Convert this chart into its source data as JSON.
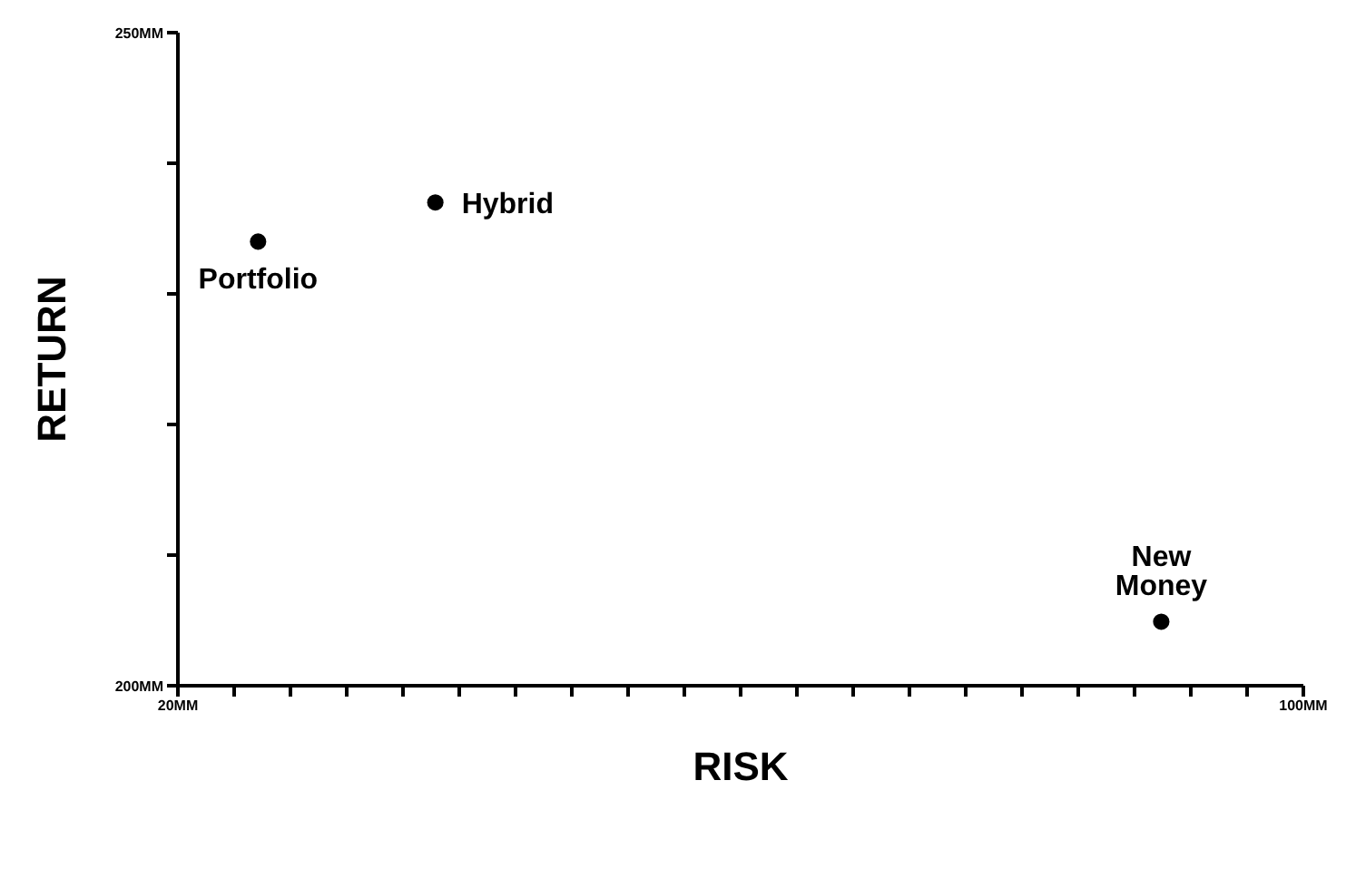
{
  "chart_data": {
    "type": "scatter",
    "xlabel": "RISK",
    "ylabel": "RETURN",
    "xlim": [
      20,
      100
    ],
    "xticks": [
      {
        "value": 20,
        "label": "20MM"
      },
      {
        "value": 24,
        "label": null
      },
      {
        "value": 28,
        "label": null
      },
      {
        "value": 32,
        "label": null
      },
      {
        "value": 36,
        "label": null
      },
      {
        "value": 40,
        "label": null
      },
      {
        "value": 44,
        "label": null
      },
      {
        "value": 48,
        "label": null
      },
      {
        "value": 52,
        "label": null
      },
      {
        "value": 56,
        "label": null
      },
      {
        "value": 60,
        "label": null
      },
      {
        "value": 64,
        "label": null
      },
      {
        "value": 68,
        "label": null
      },
      {
        "value": 72,
        "label": null
      },
      {
        "value": 76,
        "label": null
      },
      {
        "value": 80,
        "label": null
      },
      {
        "value": 84,
        "label": null
      },
      {
        "value": 88,
        "label": null
      },
      {
        "value": 92,
        "label": null
      },
      {
        "value": 96,
        "label": null
      },
      {
        "value": 100,
        "label": "100MM"
      }
    ],
    "ylim": [
      200,
      250
    ],
    "yticks": [
      {
        "value": 200,
        "label": "200MM"
      },
      {
        "value": 210,
        "label": null
      },
      {
        "value": 220,
        "label": null
      },
      {
        "value": 230,
        "label": null
      },
      {
        "value": 240,
        "label": null
      },
      {
        "value": 250,
        "label": "250MM"
      }
    ],
    "marker": "circle",
    "grid": false,
    "legend": false,
    "series": [
      {
        "name": "Portfolio",
        "color": "#000000",
        "x": [
          25.7
        ],
        "values": [
          234
        ]
      },
      {
        "name": "Hybrid",
        "color": "#000000",
        "x": [
          38.3
        ],
        "values": [
          237
        ]
      },
      {
        "name": "New Money",
        "color": "#000000",
        "x": [
          89.9
        ],
        "values": [
          204.9
        ]
      }
    ]
  }
}
